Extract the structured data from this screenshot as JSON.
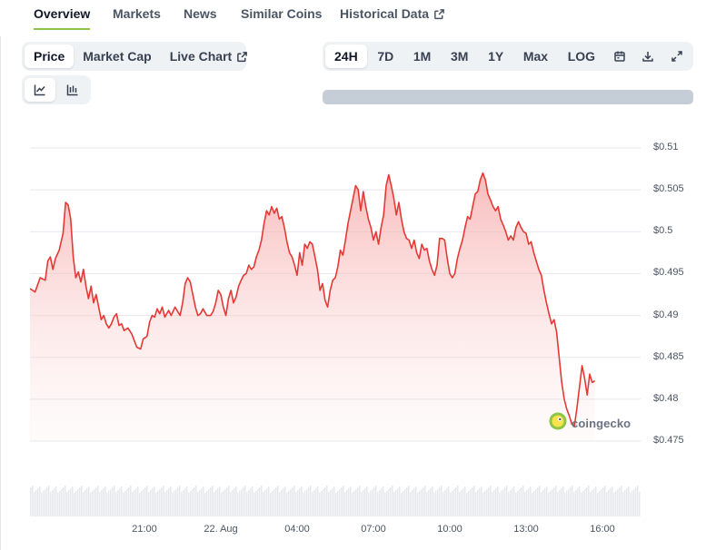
{
  "tabs": [
    {
      "label": "Overview",
      "active": true,
      "external": false
    },
    {
      "label": "Markets",
      "active": false,
      "external": false
    },
    {
      "label": "News",
      "active": false,
      "external": false
    },
    {
      "label": "Similar Coins",
      "active": false,
      "external": false
    },
    {
      "label": "Historical Data",
      "active": false,
      "external": true
    }
  ],
  "chart_toggle": {
    "items": [
      {
        "label": "Price",
        "active": true
      },
      {
        "label": "Market Cap",
        "active": false
      },
      {
        "label": "Live Chart",
        "active": false,
        "external": true
      }
    ]
  },
  "chart_style": {
    "items": [
      {
        "icon": "line-chart-icon",
        "active": true
      },
      {
        "icon": "candlestick-chart-icon",
        "active": false
      }
    ]
  },
  "time_ranges": {
    "items": [
      {
        "label": "24H",
        "active": true
      },
      {
        "label": "7D",
        "active": false
      },
      {
        "label": "1M",
        "active": false
      },
      {
        "label": "3M",
        "active": false
      },
      {
        "label": "1Y",
        "active": false
      },
      {
        "label": "Max",
        "active": false
      },
      {
        "label": "LOG",
        "active": false
      }
    ],
    "tools": [
      "calendar-icon",
      "download-icon",
      "expand-icon"
    ]
  },
  "watermark": {
    "text": "coingecko"
  },
  "colors": {
    "line": "#e53935",
    "area_top": "#f6b3b3",
    "grid": "#e5e7eb",
    "accent_tab": "#8dc647",
    "volume": "#e6e8eb"
  },
  "chart_data": {
    "type": "area",
    "x_ticks": [
      "21:00",
      "22. Aug",
      "04:00",
      "07:00",
      "10:00",
      "13:00",
      "16:00"
    ],
    "x_tick_hours": [
      3,
      6,
      9,
      12,
      15,
      18,
      21
    ],
    "y_ticks": [
      "$0.51",
      "$0.505",
      "$0.5",
      "$0.495",
      "$0.49",
      "$0.485",
      "$0.48",
      "$0.475"
    ],
    "y_tick_values": [
      0.51,
      0.505,
      0.5,
      0.495,
      0.49,
      0.485,
      0.48,
      0.475
    ],
    "ylim": [
      0.474,
      0.5115
    ],
    "xlim_hours": [
      -1.5,
      22.5
    ],
    "grid": true,
    "series": [
      {
        "points": [
          [
            -1.5,
            0.4932
          ],
          [
            -1.3,
            0.4928
          ],
          [
            -1.1,
            0.4945
          ],
          [
            -0.9,
            0.4942
          ],
          [
            -0.8,
            0.4965
          ],
          [
            -0.7,
            0.497
          ],
          [
            -0.6,
            0.4955
          ],
          [
            -0.5,
            0.4968
          ],
          [
            -0.35,
            0.4978
          ],
          [
            -0.2,
            0.4998
          ],
          [
            -0.1,
            0.5035
          ],
          [
            0.0,
            0.5032
          ],
          [
            0.1,
            0.5015
          ],
          [
            0.2,
            0.497
          ],
          [
            0.3,
            0.4945
          ],
          [
            0.4,
            0.4952
          ],
          [
            0.5,
            0.494
          ],
          [
            0.6,
            0.4955
          ],
          [
            0.7,
            0.4935
          ],
          [
            0.8,
            0.492
          ],
          [
            0.9,
            0.4935
          ],
          [
            1.0,
            0.4915
          ],
          [
            1.1,
            0.4925
          ],
          [
            1.2,
            0.491
          ],
          [
            1.3,
            0.4895
          ],
          [
            1.4,
            0.49
          ],
          [
            1.5,
            0.489
          ],
          [
            1.6,
            0.4885
          ],
          [
            1.7,
            0.489
          ],
          [
            1.8,
            0.4898
          ],
          [
            1.9,
            0.4902
          ],
          [
            2.0,
            0.4888
          ],
          [
            2.1,
            0.489
          ],
          [
            2.2,
            0.4882
          ],
          [
            2.35,
            0.4885
          ],
          [
            2.5,
            0.4878
          ],
          [
            2.6,
            0.487
          ],
          [
            2.7,
            0.4862
          ],
          [
            2.85,
            0.486
          ],
          [
            2.95,
            0.4872
          ],
          [
            3.1,
            0.4875
          ],
          [
            3.2,
            0.4892
          ],
          [
            3.3,
            0.49
          ],
          [
            3.4,
            0.4898
          ],
          [
            3.5,
            0.4908
          ],
          [
            3.6,
            0.4902
          ],
          [
            3.7,
            0.491
          ],
          [
            3.8,
            0.4898
          ],
          [
            3.95,
            0.4906
          ],
          [
            4.05,
            0.49
          ],
          [
            4.2,
            0.491
          ],
          [
            4.3,
            0.4905
          ],
          [
            4.4,
            0.49
          ],
          [
            4.5,
            0.4915
          ],
          [
            4.6,
            0.4938
          ],
          [
            4.7,
            0.4945
          ],
          [
            4.8,
            0.494
          ],
          [
            4.9,
            0.4925
          ],
          [
            5.0,
            0.491
          ],
          [
            5.1,
            0.49
          ],
          [
            5.2,
            0.4902
          ],
          [
            5.3,
            0.4908
          ],
          [
            5.45,
            0.49
          ],
          [
            5.6,
            0.49
          ],
          [
            5.7,
            0.4905
          ],
          [
            5.8,
            0.4915
          ],
          [
            5.9,
            0.493
          ],
          [
            6.0,
            0.4925
          ],
          [
            6.1,
            0.491
          ],
          [
            6.2,
            0.49
          ],
          [
            6.3,
            0.492
          ],
          [
            6.4,
            0.493
          ],
          [
            6.5,
            0.4915
          ],
          [
            6.6,
            0.4922
          ],
          [
            6.7,
            0.4935
          ],
          [
            6.8,
            0.4942
          ],
          [
            6.9,
            0.4948
          ],
          [
            7.0,
            0.495
          ],
          [
            7.1,
            0.496
          ],
          [
            7.2,
            0.4955
          ],
          [
            7.3,
            0.4958
          ],
          [
            7.4,
            0.497
          ],
          [
            7.5,
            0.4978
          ],
          [
            7.6,
            0.499
          ],
          [
            7.7,
            0.501
          ],
          [
            7.8,
            0.5025
          ],
          [
            7.9,
            0.502
          ],
          [
            8.0,
            0.503
          ],
          [
            8.1,
            0.5022
          ],
          [
            8.2,
            0.5028
          ],
          [
            8.3,
            0.5015
          ],
          [
            8.4,
            0.5018
          ],
          [
            8.5,
            0.5005
          ],
          [
            8.6,
            0.4988
          ],
          [
            8.7,
            0.4975
          ],
          [
            8.8,
            0.497
          ],
          [
            8.9,
            0.496
          ],
          [
            9.0,
            0.4948
          ],
          [
            9.1,
            0.4975
          ],
          [
            9.2,
            0.496
          ],
          [
            9.3,
            0.4985
          ],
          [
            9.4,
            0.498
          ],
          [
            9.5,
            0.4988
          ],
          [
            9.6,
            0.4985
          ],
          [
            9.7,
            0.497
          ],
          [
            9.8,
            0.4955
          ],
          [
            9.9,
            0.493
          ],
          [
            10.0,
            0.4938
          ],
          [
            10.1,
            0.4918
          ],
          [
            10.2,
            0.491
          ],
          [
            10.3,
            0.493
          ],
          [
            10.4,
            0.4942
          ],
          [
            10.5,
            0.4945
          ],
          [
            10.6,
            0.4958
          ],
          [
            10.7,
            0.4978
          ],
          [
            10.8,
            0.4972
          ],
          [
            10.9,
            0.499
          ],
          [
            11.0,
            0.501
          ],
          [
            11.1,
            0.5025
          ],
          [
            11.2,
            0.504
          ],
          [
            11.3,
            0.5055
          ],
          [
            11.4,
            0.505
          ],
          [
            11.5,
            0.5025
          ],
          [
            11.6,
            0.5048
          ],
          [
            11.7,
            0.503
          ],
          [
            11.8,
            0.5015
          ],
          [
            11.9,
            0.5005
          ],
          [
            12.0,
            0.499
          ],
          [
            12.1,
            0.5
          ],
          [
            12.2,
            0.4985
          ],
          [
            12.3,
            0.5005
          ],
          [
            12.4,
            0.502
          ],
          [
            12.5,
            0.5055
          ],
          [
            12.6,
            0.5068
          ],
          [
            12.7,
            0.5055
          ],
          [
            12.8,
            0.504
          ],
          [
            12.9,
            0.502
          ],
          [
            13.0,
            0.5035
          ],
          [
            13.1,
            0.5015
          ],
          [
            13.2,
            0.5
          ],
          [
            13.3,
            0.4992
          ],
          [
            13.4,
            0.499
          ],
          [
            13.5,
            0.498
          ],
          [
            13.6,
            0.499
          ],
          [
            13.7,
            0.4975
          ],
          [
            13.8,
            0.4968
          ],
          [
            13.9,
            0.4985
          ],
          [
            14.0,
            0.4978
          ],
          [
            14.1,
            0.498
          ],
          [
            14.2,
            0.4965
          ],
          [
            14.3,
            0.4955
          ],
          [
            14.4,
            0.4948
          ],
          [
            14.5,
            0.496
          ],
          [
            14.6,
            0.4992
          ],
          [
            14.7,
            0.4992
          ],
          [
            14.8,
            0.499
          ],
          [
            14.9,
            0.4968
          ],
          [
            15.0,
            0.495
          ],
          [
            15.1,
            0.4945
          ],
          [
            15.2,
            0.495
          ],
          [
            15.3,
            0.4968
          ],
          [
            15.4,
            0.498
          ],
          [
            15.5,
            0.499
          ],
          [
            15.6,
            0.5005
          ],
          [
            15.7,
            0.5018
          ],
          [
            15.8,
            0.5015
          ],
          [
            15.9,
            0.503
          ],
          [
            16.0,
            0.5045
          ],
          [
            16.1,
            0.5048
          ],
          [
            16.2,
            0.5062
          ],
          [
            16.3,
            0.507
          ],
          [
            16.4,
            0.5062
          ],
          [
            16.5,
            0.5045
          ],
          [
            16.6,
            0.5038
          ],
          [
            16.7,
            0.503
          ],
          [
            16.8,
            0.5025
          ],
          [
            16.9,
            0.503
          ],
          [
            17.0,
            0.5015
          ],
          [
            17.1,
            0.5008
          ],
          [
            17.2,
            0.5
          ],
          [
            17.3,
            0.499
          ],
          [
            17.4,
            0.4995
          ],
          [
            17.5,
            0.499
          ],
          [
            17.6,
            0.5005
          ],
          [
            17.7,
            0.5012
          ],
          [
            17.8,
            0.5005
          ],
          [
            17.9,
            0.5
          ],
          [
            18.0,
            0.4998
          ],
          [
            18.1,
            0.4985
          ],
          [
            18.2,
            0.4988
          ],
          [
            18.3,
            0.4975
          ],
          [
            18.4,
            0.4965
          ],
          [
            18.5,
            0.4955
          ],
          [
            18.6,
            0.4948
          ],
          [
            18.7,
            0.493
          ],
          [
            18.8,
            0.4915
          ],
          [
            18.9,
            0.4902
          ],
          [
            19.0,
            0.489
          ],
          [
            19.1,
            0.4895
          ],
          [
            19.2,
            0.488
          ],
          [
            19.3,
            0.485
          ],
          [
            19.4,
            0.482
          ],
          [
            19.5,
            0.48
          ],
          [
            19.6,
            0.4788
          ],
          [
            19.7,
            0.478
          ],
          [
            19.8,
            0.477
          ],
          [
            19.9,
            0.4768
          ],
          [
            20.0,
            0.479
          ],
          [
            20.1,
            0.4815
          ],
          [
            20.2,
            0.484
          ],
          [
            20.3,
            0.4825
          ],
          [
            20.4,
            0.4805
          ],
          [
            20.5,
            0.483
          ],
          [
            20.6,
            0.482
          ],
          [
            20.7,
            0.4822
          ]
        ]
      }
    ]
  }
}
